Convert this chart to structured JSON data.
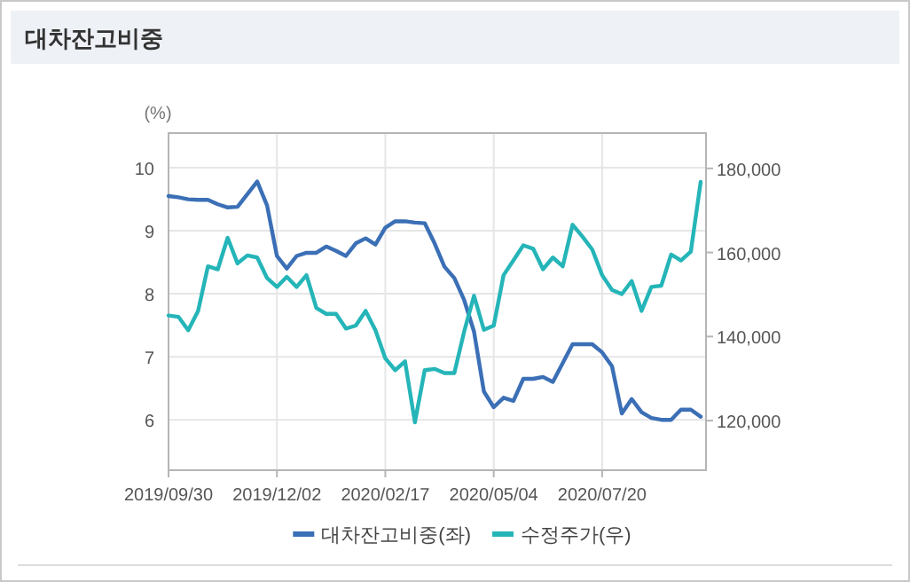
{
  "chart_data": {
    "type": "line",
    "title": "대차잔고비중",
    "ylabel": "(%)",
    "categories": [
      "2019/09/30",
      null,
      null,
      null,
      null,
      null,
      null,
      null,
      null,
      null,
      null,
      "2019/12/02",
      null,
      null,
      null,
      null,
      null,
      null,
      null,
      null,
      null,
      null,
      "2020/02/17",
      null,
      null,
      null,
      null,
      null,
      null,
      null,
      null,
      null,
      null,
      "2020/05/04",
      null,
      null,
      null,
      null,
      null,
      null,
      null,
      null,
      null,
      null,
      "2020/07/20",
      null,
      null,
      null,
      null,
      null,
      null,
      null,
      null,
      null,
      null
    ],
    "series": [
      {
        "name": "대차잔고비중(좌)",
        "color": "#3b6fb6",
        "values": [
          9.55,
          9.53,
          9.5,
          9.49,
          9.49,
          9.42,
          9.37,
          9.38,
          9.58,
          9.78,
          9.4,
          8.6,
          8.4,
          8.6,
          8.65,
          8.65,
          8.75,
          8.68,
          8.6,
          8.8,
          8.88,
          8.78,
          9.05,
          9.15,
          9.15,
          9.13,
          9.12,
          8.8,
          8.43,
          8.25,
          7.9,
          7.4,
          6.45,
          6.2,
          6.35,
          6.3,
          6.65,
          6.65,
          6.68,
          6.6,
          6.9,
          7.2,
          7.2,
          7.2,
          7.07,
          6.85,
          6.1,
          6.33,
          6.12,
          6.03,
          6.0,
          6.0,
          6.16,
          6.16,
          6.05
        ]
      },
      {
        "name": "수정주가(우)",
        "color": "#25b5b8",
        "axis": "y2",
        "values": [
          145000,
          144700,
          141500,
          146100,
          156700,
          156000,
          163500,
          157400,
          159300,
          158800,
          153900,
          151800,
          154200,
          151800,
          154600,
          146800,
          145400,
          145400,
          141900,
          142600,
          146100,
          141500,
          134800,
          132000,
          134100,
          119600,
          132000,
          132300,
          131300,
          131300,
          141200,
          149700,
          141600,
          142600,
          154600,
          158100,
          161700,
          160900,
          156000,
          158800,
          156700,
          166600,
          163800,
          160700,
          154600,
          151100,
          150100,
          153200,
          146100,
          151800,
          152100,
          159500,
          158100,
          160200,
          176800
        ]
      }
    ],
    "ylim": [
      5.2,
      10.55
    ],
    "yticks": [
      6,
      7,
      8,
      9,
      10
    ],
    "y2lim": [
      108200,
      188400
    ],
    "y2ticks": [
      {
        "value": 120000,
        "label": "120,000"
      },
      {
        "value": 140000,
        "label": "140,000"
      },
      {
        "value": 160000,
        "label": "160,000"
      },
      {
        "value": 180000,
        "label": "180,000"
      }
    ],
    "grid": true,
    "legend": "bottom"
  }
}
